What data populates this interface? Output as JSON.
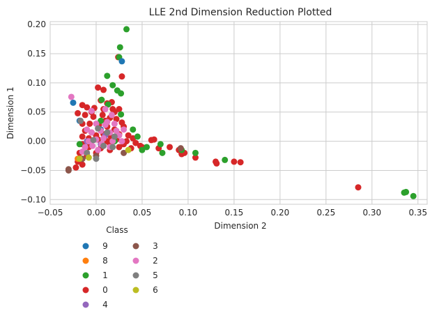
{
  "chart_data": {
    "type": "scatter",
    "title": "LLE 2nd Dimension Reduction Plotted",
    "xlabel": "Dimension 2",
    "ylabel": "Dimension 1",
    "xlim": [
      -0.05,
      0.36
    ],
    "ylim": [
      -0.108,
      0.205
    ],
    "xticks": [
      -0.05,
      0.0,
      0.05,
      0.1,
      0.15,
      0.2,
      0.25,
      0.3,
      0.35
    ],
    "xtick_labels": [
      "−0.05",
      "0.00",
      "0.05",
      "0.10",
      "0.15",
      "0.20",
      "0.25",
      "0.30",
      "0.35"
    ],
    "yticks": [
      -0.1,
      -0.05,
      0.0,
      0.05,
      0.1,
      0.15,
      0.2
    ],
    "ytick_labels": [
      "−0.10",
      "−0.05",
      "0.00",
      "0.05",
      "0.10",
      "0.15",
      "0.20"
    ],
    "grid": true,
    "legend": {
      "title": "Class",
      "placement": "below-left",
      "columns": 2
    },
    "series": [
      {
        "name": "9",
        "color": "#1f77b4",
        "points": [
          [
            0.028,
            0.137
          ],
          [
            -0.025,
            0.066
          ],
          [
            -0.018,
            0.035
          ],
          [
            0.005,
            0.02
          ]
        ]
      },
      {
        "name": "8",
        "color": "#ff7f0e",
        "points": [
          [
            -0.02,
            -0.03
          ],
          [
            0.01,
            0.01
          ]
        ]
      },
      {
        "name": "1",
        "color": "#2ca02c",
        "points": [
          [
            0.033,
            0.192
          ],
          [
            0.026,
            0.161
          ],
          [
            0.025,
            0.144
          ],
          [
            0.012,
            0.112
          ],
          [
            0.018,
            0.096
          ],
          [
            0.023,
            0.087
          ],
          [
            0.027,
            0.082
          ],
          [
            0.006,
            0.071
          ],
          [
            0.013,
            0.063
          ],
          [
            0.027,
            0.046
          ],
          [
            0.04,
            0.02
          ],
          [
            0.045,
            0.008
          ],
          [
            0.055,
            -0.01
          ],
          [
            0.07,
            -0.005
          ],
          [
            0.072,
            -0.02
          ],
          [
            0.093,
            -0.015
          ],
          [
            0.108,
            -0.02
          ],
          [
            0.14,
            -0.032
          ],
          [
            0.335,
            -0.088
          ],
          [
            0.337,
            -0.087
          ],
          [
            0.345,
            -0.094
          ],
          [
            -0.018,
            -0.005
          ],
          [
            -0.015,
            -0.03
          ],
          [
            0.005,
            0.035
          ],
          [
            0.02,
            0.0
          ],
          [
            0.05,
            -0.015
          ]
        ]
      },
      {
        "name": "0",
        "color": "#d62728",
        "points": [
          [
            0.028,
            0.111
          ],
          [
            0.024,
            0.144
          ],
          [
            0.002,
            0.092
          ],
          [
            0.008,
            0.088
          ],
          [
            0.005,
            0.07
          ],
          [
            0.012,
            0.065
          ],
          [
            0.017,
            0.067
          ],
          [
            -0.015,
            0.062
          ],
          [
            -0.01,
            0.058
          ],
          [
            -0.002,
            0.057
          ],
          [
            0.008,
            0.055
          ],
          [
            0.02,
            0.05
          ],
          [
            -0.012,
            0.045
          ],
          [
            -0.003,
            0.042
          ],
          [
            0.007,
            0.045
          ],
          [
            0.015,
            0.04
          ],
          [
            0.022,
            0.038
          ],
          [
            0.028,
            0.032
          ],
          [
            -0.015,
            0.03
          ],
          [
            -0.007,
            0.03
          ],
          [
            0.003,
            0.028
          ],
          [
            0.012,
            0.025
          ],
          [
            0.02,
            0.02
          ],
          [
            0.03,
            0.025
          ],
          [
            -0.012,
            0.018
          ],
          [
            -0.005,
            0.015
          ],
          [
            0.008,
            0.012
          ],
          [
            0.016,
            0.008
          ],
          [
            0.025,
            0.012
          ],
          [
            0.035,
            0.01
          ],
          [
            -0.015,
            0.008
          ],
          [
            -0.008,
            0.005
          ],
          [
            0.002,
            0.003
          ],
          [
            0.012,
            0.0
          ],
          [
            0.022,
            0.003
          ],
          [
            0.033,
            0.0
          ],
          [
            0.043,
            -0.003
          ],
          [
            0.048,
            -0.008
          ],
          [
            -0.015,
            -0.005
          ],
          [
            -0.008,
            -0.01
          ],
          [
            0.005,
            -0.012
          ],
          [
            0.015,
            -0.015
          ],
          [
            0.025,
            -0.01
          ],
          [
            0.038,
            -0.012
          ],
          [
            0.05,
            -0.01
          ],
          [
            -0.018,
            -0.02
          ],
          [
            -0.01,
            -0.025
          ],
          [
            0.0,
            -0.02
          ],
          [
            -0.02,
            -0.035
          ],
          [
            -0.022,
            -0.045
          ],
          [
            -0.015,
            -0.04
          ],
          [
            0.06,
            0.002
          ],
          [
            0.063,
            0.003
          ],
          [
            0.068,
            -0.012
          ],
          [
            0.08,
            -0.01
          ],
          [
            0.09,
            -0.015
          ],
          [
            0.093,
            -0.022
          ],
          [
            0.096,
            -0.02
          ],
          [
            0.108,
            -0.028
          ],
          [
            0.13,
            -0.035
          ],
          [
            0.131,
            -0.038
          ],
          [
            0.15,
            -0.035
          ],
          [
            0.157,
            -0.036
          ],
          [
            0.285,
            -0.079
          ],
          [
            -0.02,
            0.048
          ],
          [
            0.0,
            0.01
          ],
          [
            0.01,
            0.035
          ],
          [
            0.018,
            0.055
          ],
          [
            0.03,
            -0.005
          ],
          [
            0.04,
            0.005
          ],
          [
            -0.005,
            0.05
          ],
          [
            0.025,
            0.055
          ],
          [
            0.015,
            -0.005
          ]
        ]
      },
      {
        "name": "4",
        "color": "#9467bd",
        "points": [
          [
            -0.01,
            0.0
          ],
          [
            0.005,
            -0.005
          ],
          [
            0.01,
            0.01
          ]
        ]
      },
      {
        "name": "3",
        "color": "#8c564b",
        "points": [
          [
            -0.03,
            -0.048
          ],
          [
            -0.03,
            -0.05
          ],
          [
            -0.015,
            -0.03
          ],
          [
            0.03,
            -0.02
          ],
          [
            0.092,
            -0.012
          ],
          [
            0.0,
            -0.025
          ]
        ]
      },
      {
        "name": "2",
        "color": "#e377c2",
        "points": [
          [
            -0.027,
            0.076
          ],
          [
            0.01,
            0.055
          ],
          [
            -0.005,
            0.052
          ],
          [
            0.017,
            0.045
          ],
          [
            0.0,
            0.03
          ],
          [
            0.01,
            0.028
          ],
          [
            0.02,
            0.03
          ],
          [
            -0.005,
            0.015
          ],
          [
            0.005,
            0.018
          ],
          [
            0.015,
            0.015
          ],
          [
            0.025,
            0.01
          ],
          [
            0.03,
            0.02
          ],
          [
            -0.008,
            0.0
          ],
          [
            0.0,
            0.003
          ],
          [
            0.008,
            0.005
          ],
          [
            0.018,
            0.0
          ],
          [
            0.028,
            0.0
          ],
          [
            -0.012,
            -0.01
          ],
          [
            -0.004,
            -0.008
          ],
          [
            0.006,
            -0.005
          ],
          [
            0.015,
            -0.01
          ],
          [
            -0.01,
            0.02
          ],
          [
            0.012,
            0.033
          ],
          [
            0.022,
            0.018
          ],
          [
            -0.015,
            -0.018
          ],
          [
            0.002,
            -0.015
          ]
        ]
      },
      {
        "name": "5",
        "color": "#7f7f7f",
        "points": [
          [
            -0.017,
            0.035
          ],
          [
            0.002,
            0.022
          ],
          [
            0.012,
            0.015
          ],
          [
            -0.003,
            0.002
          ],
          [
            0.008,
            -0.008
          ],
          [
            -0.01,
            -0.02
          ],
          [
            0.018,
            -0.01
          ],
          [
            0.0,
            -0.03
          ],
          [
            0.02,
            0.008
          ]
        ]
      },
      {
        "name": "6",
        "color": "#bcbd22",
        "points": [
          [
            0.035,
            -0.015
          ],
          [
            -0.018,
            -0.03
          ],
          [
            -0.008,
            -0.028
          ]
        ]
      }
    ]
  }
}
